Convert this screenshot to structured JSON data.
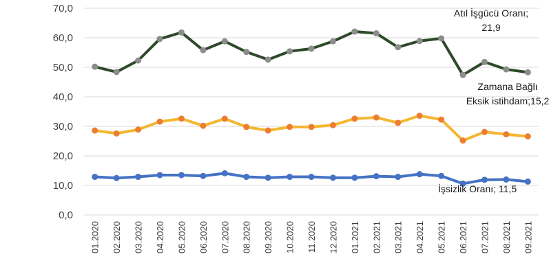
{
  "chart_data": {
    "type": "line",
    "title": "",
    "xlabel": "",
    "ylabel": "",
    "ylim": [
      0,
      70
    ],
    "yticks": [
      "0,0",
      "10,0",
      "20,0",
      "30,0",
      "40,0",
      "50,0",
      "60,0",
      "70,0"
    ],
    "grid": "horizontal",
    "categories": [
      "01.2020",
      "02.2020",
      "03.2020",
      "04.2020",
      "05.2020",
      "06.2020",
      "07.2020",
      "08.2020",
      "09.2020",
      "10.2020",
      "11.2020",
      "12.2020",
      "01.2021",
      "02.2021",
      "03.2021",
      "04.2021",
      "05.2021",
      "06.2021",
      "07.2021",
      "08.2021",
      "09.2021"
    ],
    "series": [
      {
        "color": "#2e4a2a",
        "marker_color": "#8c8c8c",
        "values": [
          50.2,
          48.4,
          52.3,
          59.6,
          61.8,
          55.8,
          58.8,
          55.2,
          52.6,
          55.4,
          56.3,
          58.8,
          62.1,
          61.5,
          56.8,
          58.9,
          59.8,
          47.4,
          51.8,
          49.3,
          48.3
        ]
      },
      {
        "color": "#f5b731",
        "marker_color": "#ed7d31",
        "values": [
          28.6,
          27.6,
          28.9,
          31.6,
          32.6,
          30.2,
          32.6,
          29.8,
          28.6,
          29.8,
          29.8,
          30.4,
          32.6,
          33.0,
          31.2,
          33.6,
          32.3,
          25.2,
          28.1,
          27.3,
          26.6
        ]
      },
      {
        "color": "#4472c4",
        "marker_color": "#4472c4",
        "values": [
          12.9,
          12.5,
          12.9,
          13.5,
          13.5,
          13.2,
          14.1,
          12.9,
          12.6,
          12.9,
          12.9,
          12.6,
          12.6,
          13.1,
          12.9,
          13.8,
          13.2,
          10.6,
          11.9,
          12.0,
          11.3
        ]
      }
    ],
    "annotations": [
      {
        "lines": [
          "Atıl İşgücü Oranı;",
          "21,9"
        ]
      },
      {
        "lines": [
          "Zamana Bağlı",
          "Eksik istihdam;15,2"
        ]
      },
      {
        "lines": [
          "İşsizlik Oranı;  11,5"
        ]
      }
    ]
  }
}
